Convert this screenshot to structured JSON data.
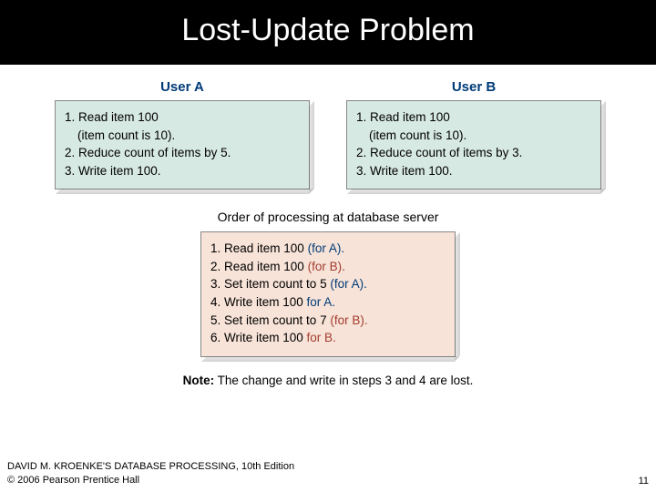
{
  "title": "Lost-Update Problem",
  "userA": {
    "label": "User A",
    "line1": "1. Read item 100",
    "line1b": "(item count is 10).",
    "line2": "2. Reduce count of items by 5.",
    "line3": "3. Write item 100."
  },
  "userB": {
    "label": "User B",
    "line1": "1. Read item 100",
    "line1b": "(item count is 10).",
    "line2": "2. Reduce count of items by 3.",
    "line3": "3. Write item 100."
  },
  "caption": "Order of processing at database server",
  "steps": {
    "s1a": "1. Read item 100 ",
    "s1b": "(for A).",
    "s2a": "2. Read item 100 ",
    "s2b": "(for B).",
    "s3a": "3. Set item count to 5 ",
    "s3b": "(for A).",
    "s4a": "4. Write item 100 ",
    "s4b": "for A.",
    "s5a": "5. Set item count to 7 ",
    "s5b": "(for B).",
    "s6a": "6. Write item 100 ",
    "s6b": "for B."
  },
  "note_label": "Note:",
  "note_text": " The change and write in steps 3 and 4 are lost.",
  "footer1": "DAVID M. KROENKE'S DATABASE PROCESSING, 10th Edition",
  "footer2": "© 2006 Pearson Prentice Hall",
  "page": "11",
  "colors": {
    "title_bg": "#000000",
    "title_fg": "#ffffff",
    "user_label": "#003b78",
    "box_green": "#d7e9e3",
    "box_pink": "#f7e3d8",
    "stepA": "#003b78",
    "stepB": "#a43c2e"
  }
}
